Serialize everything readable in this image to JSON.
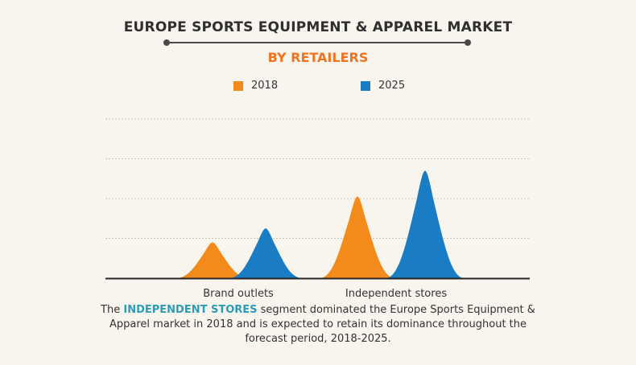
{
  "header": {
    "title": "EUROPE SPORTS EQUIPMENT & APPAREL MARKET",
    "subtitle": "BY RETAILERS"
  },
  "legend": [
    {
      "label": "2018",
      "color": "#f38a1c"
    },
    {
      "label": "2025",
      "color": "#1a7cc3"
    }
  ],
  "chart_data": {
    "type": "area",
    "categories": [
      "Brand outlets",
      "Independent stores"
    ],
    "series": [
      {
        "name": "2018",
        "values": [
          0.9,
          2.05
        ],
        "color": "#f38a1c"
      },
      {
        "name": "2025",
        "values": [
          1.25,
          2.7
        ],
        "color": "#1a7cc3"
      }
    ],
    "ylim": [
      0,
      4
    ],
    "grid": true,
    "legend_position": "top"
  },
  "note": {
    "prefix": "The ",
    "highlight": "INDEPENDENT STORES",
    "suffix": " segment dominated the Europe Sports Equipment & Apparel  market in 2018 and is expected to retain its dominance throughout the forecast period, 2018-2025."
  }
}
